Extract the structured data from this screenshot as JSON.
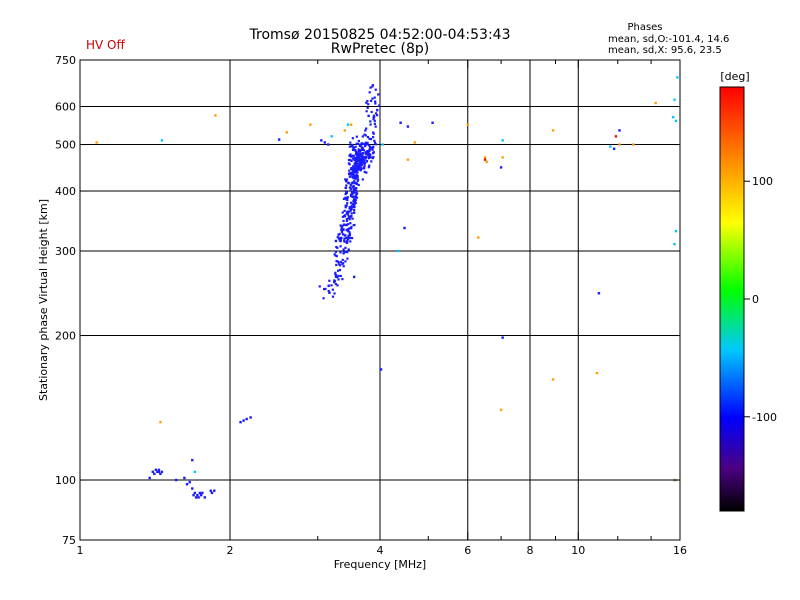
{
  "header": {
    "title": "Tromsø 20150825 04:52:00-04:53:43",
    "subtitle": "RwPretec (8p)",
    "hv_status": "HV Off",
    "phases_label": "Phases",
    "stats_o": "mean, sd,O:-101.4, 14.6",
    "stats_x": "mean, sd,X:  95.6, 23.5"
  },
  "chart_data": {
    "type": "scatter",
    "xlabel": "Frequency [MHz]",
    "ylabel": "Stationary phase Virtual Height [km]",
    "xscale": "log",
    "yscale": "log",
    "xlim": [
      1,
      16
    ],
    "ylim": [
      75,
      750
    ],
    "x_ticks": [
      1,
      2,
      4,
      6,
      8,
      10,
      16
    ],
    "x_major_grid": [
      2,
      4,
      6,
      8,
      10
    ],
    "x_minor_ticks": [
      3,
      5,
      7,
      9,
      12,
      14
    ],
    "y_ticks": [
      75,
      100,
      200,
      300,
      400,
      500,
      600,
      750
    ],
    "y_grid": [
      100,
      200,
      300,
      400,
      500,
      600
    ],
    "colorbar": {
      "label": "[deg]",
      "min": -180,
      "max": 180,
      "ticks": [
        100,
        0,
        -100
      ]
    },
    "series": [
      {
        "color_code": "blue",
        "color": "#1a1aff",
        "points": [
          [
            1.38,
            101
          ],
          [
            1.4,
            104
          ],
          [
            1.42,
            105
          ],
          [
            1.43,
            104
          ],
          [
            1.44,
            105
          ],
          [
            1.45,
            103
          ],
          [
            1.46,
            104
          ],
          [
            1.41,
            103
          ],
          [
            1.44,
            104
          ],
          [
            1.56,
            100
          ],
          [
            1.62,
            101
          ],
          [
            1.64,
            98
          ],
          [
            1.66,
            99
          ],
          [
            1.68,
            96
          ],
          [
            1.69,
            93
          ],
          [
            1.7,
            94
          ],
          [
            1.71,
            92
          ],
          [
            1.72,
            93
          ],
          [
            1.73,
            92
          ],
          [
            1.74,
            94
          ],
          [
            1.75,
            93
          ],
          [
            1.76,
            94
          ],
          [
            1.78,
            92
          ],
          [
            1.83,
            95
          ],
          [
            1.84,
            94
          ],
          [
            1.86,
            95
          ],
          [
            1.68,
            110
          ],
          [
            2.1,
            132
          ],
          [
            2.13,
            133
          ],
          [
            2.16,
            134
          ],
          [
            2.2,
            135
          ],
          [
            2.51,
            512
          ],
          [
            3.05,
            510
          ],
          [
            3.1,
            505
          ],
          [
            3.15,
            500
          ],
          [
            4.4,
            555
          ],
          [
            4.55,
            545
          ],
          [
            5.1,
            555
          ],
          [
            7.0,
            448
          ],
          [
            7.05,
            198
          ],
          [
            4.02,
            170
          ],
          [
            4.48,
            335
          ],
          [
            11.0,
            245
          ],
          [
            12.1,
            535
          ],
          [
            11.8,
            490
          ],
          [
            3.55,
            265
          ]
        ]
      },
      {
        "color_code": "cyan",
        "color": "#00c8ff",
        "points": [
          [
            1.46,
            510
          ],
          [
            1.7,
            104
          ],
          [
            3.2,
            520
          ],
          [
            3.45,
            550
          ],
          [
            4.05,
            500
          ],
          [
            4.35,
            300
          ],
          [
            7.05,
            510
          ],
          [
            11.6,
            495
          ],
          [
            15.8,
            690
          ],
          [
            15.6,
            620
          ],
          [
            15.7,
            560
          ],
          [
            15.5,
            570
          ],
          [
            15.6,
            310
          ],
          [
            15.7,
            330
          ],
          [
            15.6,
            100
          ]
        ]
      },
      {
        "color_code": "orange",
        "color": "#ffa000",
        "points": [
          [
            1.08,
            505
          ],
          [
            1.45,
            132
          ],
          [
            1.87,
            575
          ],
          [
            2.6,
            530
          ],
          [
            2.9,
            550
          ],
          [
            3.4,
            535
          ],
          [
            3.5,
            550
          ],
          [
            4.55,
            465
          ],
          [
            4.7,
            505
          ],
          [
            6.0,
            550
          ],
          [
            6.3,
            320
          ],
          [
            6.5,
            470
          ],
          [
            6.55,
            460
          ],
          [
            7.05,
            470
          ],
          [
            7.0,
            140
          ],
          [
            8.9,
            535
          ],
          [
            8.9,
            162
          ],
          [
            10.9,
            167
          ],
          [
            12.1,
            500
          ],
          [
            12.9,
            500
          ],
          [
            14.3,
            610
          ],
          [
            15.7,
            100
          ]
        ]
      },
      {
        "color_code": "red",
        "color": "#e01010",
        "points": [
          [
            6.5,
            465
          ],
          [
            11.9,
            520
          ]
        ]
      }
    ],
    "trace": {
      "color": "#1a1aff",
      "description_none": "",
      "segments": [
        [
          3.12,
          245
        ],
        [
          3.18,
          250
        ],
        [
          3.22,
          258
        ],
        [
          3.25,
          265
        ],
        [
          3.28,
          272
        ],
        [
          3.3,
          280
        ],
        [
          3.32,
          288
        ],
        [
          3.34,
          296
        ],
        [
          3.36,
          305
        ],
        [
          3.38,
          314
        ],
        [
          3.4,
          322
        ],
        [
          3.42,
          332
        ],
        [
          3.44,
          342
        ],
        [
          3.45,
          352
        ],
        [
          3.46,
          362
        ],
        [
          3.47,
          372
        ],
        [
          3.48,
          382
        ],
        [
          3.49,
          392
        ],
        [
          3.5,
          402
        ],
        [
          3.51,
          412
        ],
        [
          3.52,
          422
        ],
        [
          3.53,
          432
        ],
        [
          3.54,
          442
        ],
        [
          3.55,
          452
        ],
        [
          3.56,
          462
        ],
        [
          3.57,
          472
        ],
        [
          3.58,
          482
        ],
        [
          3.59,
          492
        ],
        [
          3.6,
          500
        ],
        [
          3.62,
          440
        ],
        [
          3.64,
          450
        ],
        [
          3.66,
          455
        ],
        [
          3.68,
          460
        ],
        [
          3.7,
          465
        ],
        [
          3.72,
          470
        ],
        [
          3.74,
          475
        ],
        [
          3.76,
          480
        ],
        [
          3.78,
          490
        ],
        [
          3.8,
          500
        ],
        [
          3.82,
          520
        ],
        [
          3.84,
          540
        ],
        [
          3.85,
          560
        ],
        [
          3.86,
          580
        ],
        [
          3.87,
          600
        ],
        [
          3.88,
          620
        ],
        [
          3.89,
          640
        ]
      ]
    }
  }
}
